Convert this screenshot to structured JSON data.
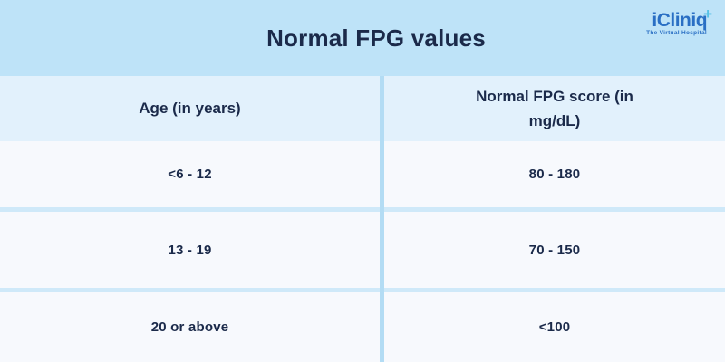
{
  "header": {
    "title": "Normal FPG values"
  },
  "logo": {
    "name": "iCliniq",
    "plus_glyph": "+",
    "tagline": "The Virtual Hospital"
  },
  "table": {
    "columns": [
      "Age (in years)",
      "Normal FPG score (in mg/dL)"
    ],
    "rows": [
      [
        "<6 - 12",
        "80 - 180"
      ],
      [
        "13 - 19",
        "70 - 150"
      ],
      [
        "20 or above",
        "<100"
      ]
    ]
  },
  "colors": {
    "title_band_bg": "#bee3f8",
    "header_row_bg": "#e2f1fc",
    "data_row_bg": "#f7f9fd",
    "row_divider": "#cfe9f9",
    "column_divider": "#b3dcf4",
    "text_navy": "#1b2a4a",
    "logo_blue": "#2a6fc4",
    "logo_accent_teal": "#58c2e6"
  }
}
